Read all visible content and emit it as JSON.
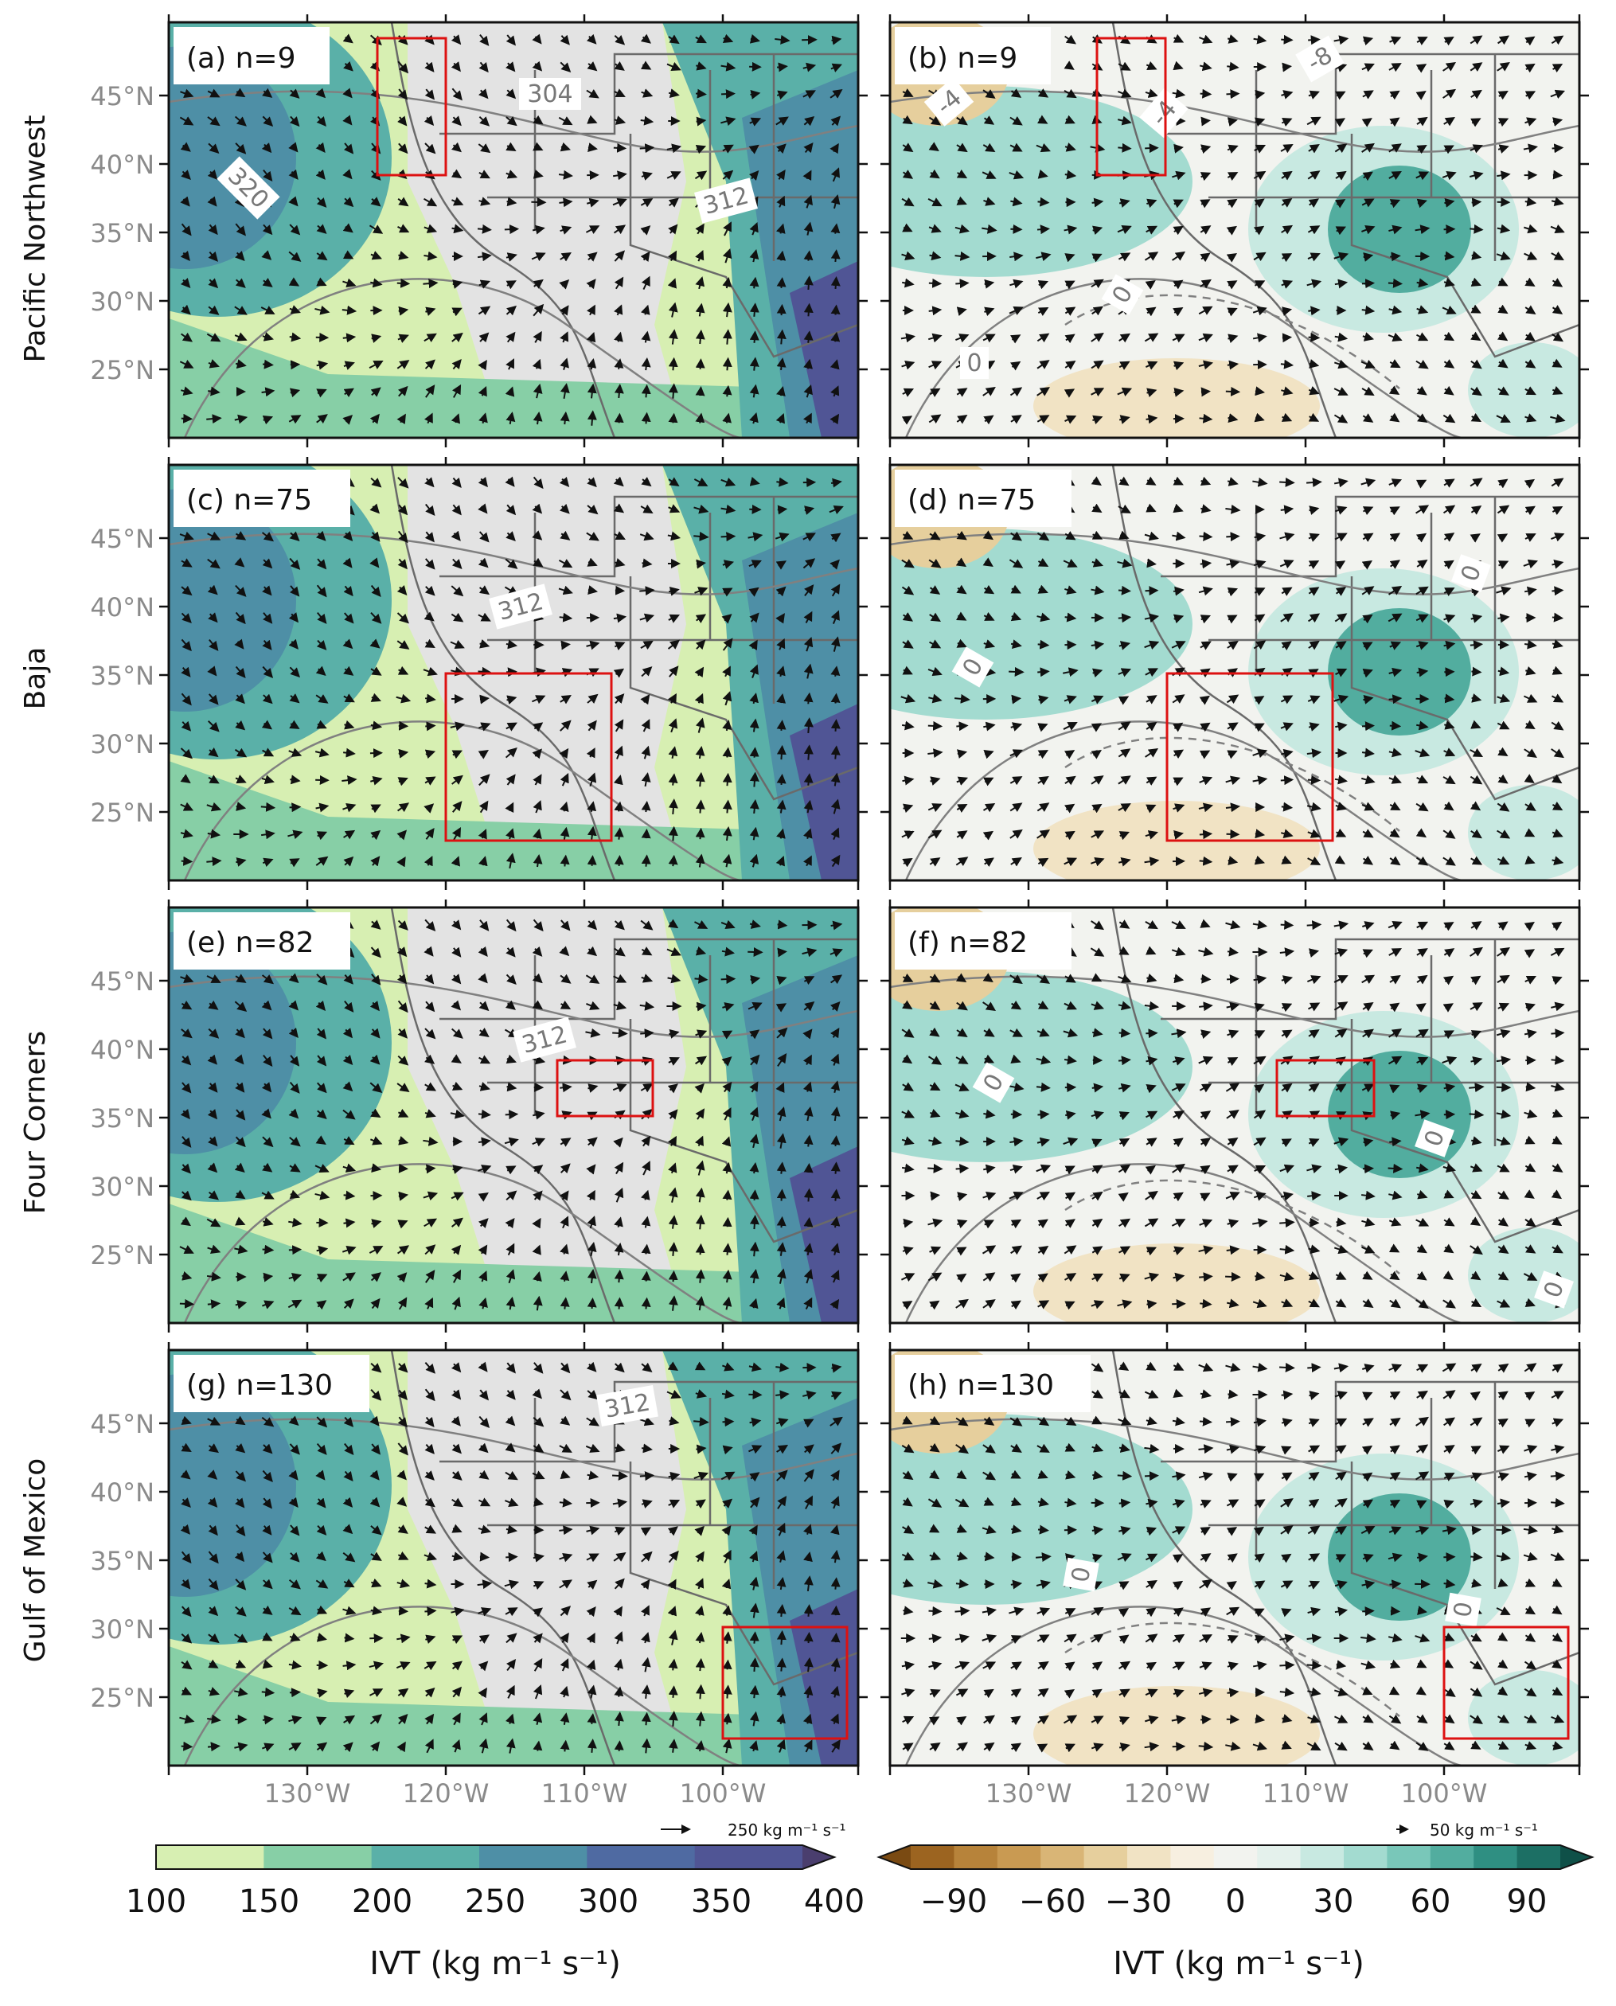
{
  "rows": [
    {
      "label": "Pacific Northwest",
      "left_panel": "(a) n=9",
      "right_panel": "(b) n=9"
    },
    {
      "label": "Baja",
      "left_panel": "(c) n=75",
      "right_panel": "(d) n=75"
    },
    {
      "label": "Four Corners",
      "left_panel": "(e) n=82",
      "right_panel": "(f) n=82"
    },
    {
      "label": "Gulf of Mexico",
      "left_panel": "(g) n=130",
      "right_panel": "(h) n=130"
    }
  ],
  "lat_ticks": [
    "45°N",
    "40°N",
    "35°N",
    "30°N",
    "25°N"
  ],
  "lon_ticks": [
    "130°W",
    "120°W",
    "110°W",
    "100°W"
  ],
  "contour_labels": {
    "a": [
      "304",
      "320",
      "312"
    ],
    "b": [
      "-4",
      "-4",
      "-8",
      "0",
      "0"
    ],
    "c": [
      "312"
    ],
    "d": [
      "0",
      "0"
    ],
    "e": [
      "312"
    ],
    "f": [
      "0",
      "0",
      "0"
    ],
    "g": [
      "312"
    ],
    "h": [
      "0",
      "0"
    ]
  },
  "quiver_keys": {
    "left": "250 kg m⁻¹ s⁻¹",
    "right": "50 kg m⁻¹ s⁻¹"
  },
  "colorbars": {
    "left": {
      "ticks": [
        "100",
        "150",
        "200",
        "250",
        "300",
        "350",
        "400"
      ],
      "label": "IVT (kg m⁻¹ s⁻¹)",
      "colors": [
        "#d7efb2",
        "#87cfa6",
        "#5ab0a8",
        "#4e8fa6",
        "#4f6aa2",
        "#505595",
        "#4a3e6e"
      ]
    },
    "right": {
      "ticks": [
        "−90",
        "−60",
        "−30",
        "0",
        "30",
        "60",
        "90"
      ],
      "label": "IVT (kg m⁻¹ s⁻¹)",
      "colors": [
        "#7a4a12",
        "#9c6420",
        "#b7833a",
        "#c99a52",
        "#d9b576",
        "#e6cf9d",
        "#f1e3c4",
        "#f7efe0",
        "#f2f3ef",
        "#e4f1ec",
        "#c8e9e1",
        "#a3dbd0",
        "#79c7b9",
        "#52ad9f",
        "#2f8f82",
        "#1c6f64",
        "#0f5048"
      ]
    }
  }
}
